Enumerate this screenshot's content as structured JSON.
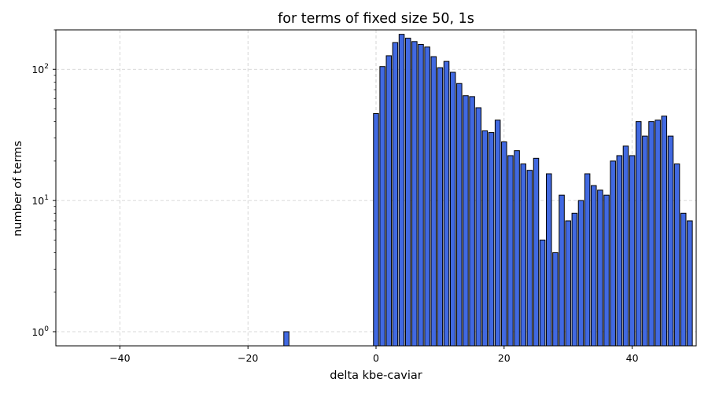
{
  "chart_data": {
    "type": "bar",
    "title": "for terms of fixed size 50, 1s",
    "xlabel": "delta kbe-caviar",
    "ylabel": "number of terms",
    "xlim": [
      -50,
      50
    ],
    "ylim": [
      0.78,
      200
    ],
    "yscale": "log",
    "grid": true,
    "bar_color": "#4169e1",
    "edge_color": "#000000",
    "x_ticks": [
      -40,
      -20,
      0,
      20,
      40
    ],
    "x_tick_labels": [
      "−40",
      "−20",
      "0",
      "20",
      "40"
    ],
    "y_ticks": [
      1,
      10,
      100
    ],
    "y_tick_labels": [
      {
        "base": "10",
        "exp": "0"
      },
      {
        "base": "10",
        "exp": "1"
      },
      {
        "base": "10",
        "exp": "2"
      }
    ],
    "x": [
      -14,
      0,
      1,
      2,
      3,
      4,
      5,
      6,
      7,
      8,
      9,
      10,
      11,
      12,
      13,
      14,
      15,
      16,
      17,
      18,
      19,
      20,
      21,
      22,
      23,
      24,
      25,
      26,
      27,
      28,
      29,
      30,
      31,
      32,
      33,
      34,
      35,
      36,
      37,
      38,
      39,
      40,
      41,
      42,
      43,
      44,
      45,
      46,
      47,
      48,
      49
    ],
    "values": [
      1,
      46,
      105,
      127,
      160,
      185,
      173,
      163,
      155,
      148,
      125,
      103,
      115,
      95,
      78,
      63,
      62,
      51,
      34,
      33,
      41,
      28,
      22,
      24,
      19,
      17,
      21,
      5,
      16,
      4,
      11,
      7,
      8,
      10,
      16,
      13,
      12,
      11,
      20,
      22,
      26,
      22,
      40,
      31,
      40,
      41,
      44,
      31,
      19,
      8,
      7
    ]
  }
}
